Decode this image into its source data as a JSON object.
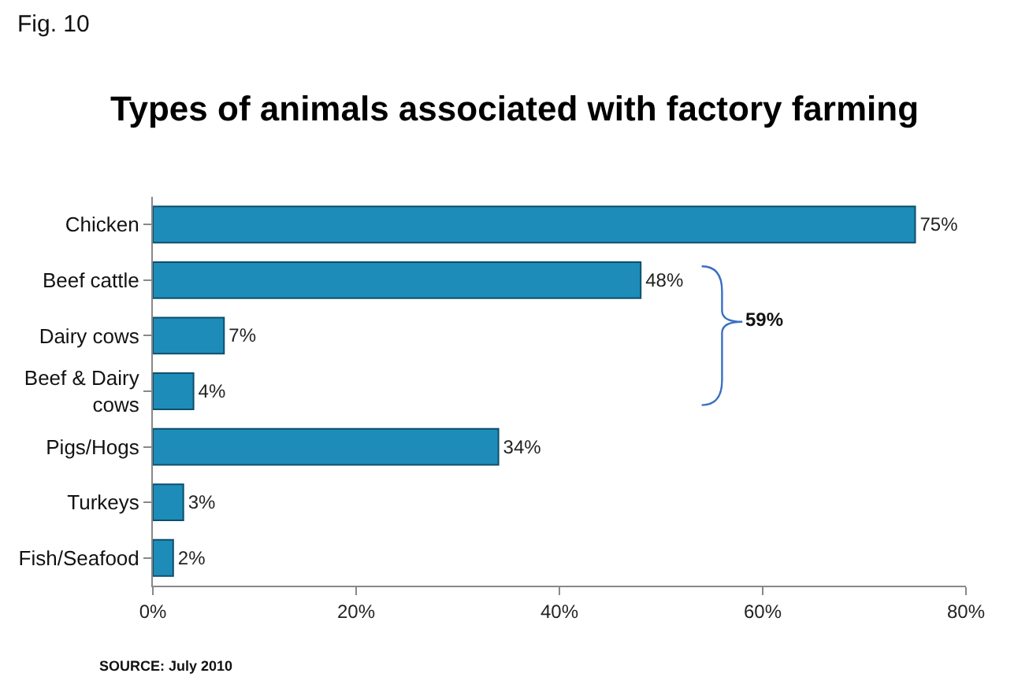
{
  "chart_data": {
    "type": "bar",
    "orientation": "horizontal",
    "title": "Types of animals associated with factory farming",
    "categories": [
      "Chicken",
      "Beef cattle",
      "Dairy cows",
      "Beef & Dairy cows",
      "Pigs/Hogs",
      "Turkeys",
      "Fish/Seafood"
    ],
    "values": [
      75,
      48,
      7,
      4,
      34,
      3,
      2
    ],
    "value_labels": [
      "75%",
      "48%",
      "7%",
      "4%",
      "34%",
      "3%",
      "2%"
    ],
    "color": "#1e8cb8",
    "xlim": [
      0,
      80
    ],
    "xticks": [
      {
        "value": 0,
        "label": "0%"
      },
      {
        "value": 20,
        "label": "20%"
      },
      {
        "value": 40,
        "label": "40%"
      },
      {
        "value": 60,
        "label": "60%"
      },
      {
        "value": 80,
        "label": "80%"
      }
    ],
    "legend": false,
    "annotations": [
      "Fig. 10",
      "59%",
      "SOURCE: July 2010"
    ]
  }
}
